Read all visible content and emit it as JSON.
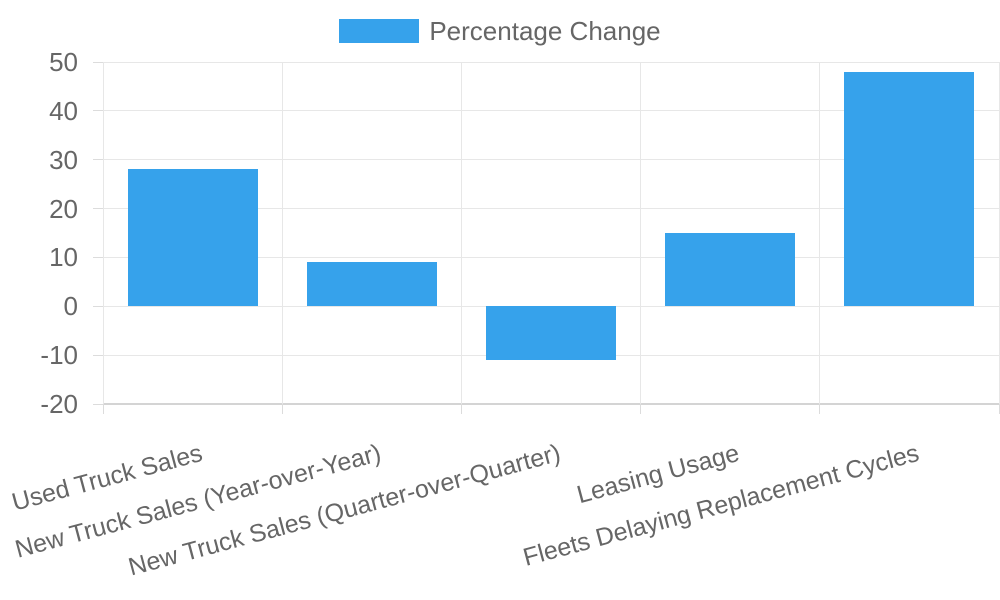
{
  "chart_data": {
    "type": "bar",
    "title": "",
    "legend": {
      "position": "top",
      "entries": [
        {
          "label": "Percentage Change",
          "color": "#36A2EB"
        }
      ]
    },
    "categories": [
      "Used Truck Sales",
      "New Truck Sales (Year-over-Year)",
      "New Truck Sales (Quarter-over-Quarter)",
      "Leasing Usage",
      "Fleets Delaying Replacement Cycles"
    ],
    "series": [
      {
        "name": "Percentage Change",
        "values": [
          28,
          9,
          -11,
          15,
          48
        ]
      }
    ],
    "xlabel": "",
    "ylabel": "",
    "ylim": [
      -20,
      50
    ],
    "yticks": [
      50,
      40,
      30,
      20,
      10,
      0,
      -10,
      -20
    ],
    "grid": true,
    "x_label_rotation_deg": -15
  },
  "colors": {
    "bar": "#36A2EB",
    "text": "#666666",
    "grid": "#e7e7e7",
    "border": "#d4d4d4",
    "tick": "#dcdcdc",
    "background": "#ffffff"
  }
}
